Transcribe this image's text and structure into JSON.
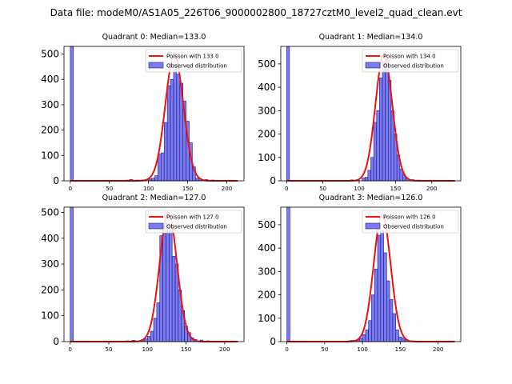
{
  "figure_title": "Data file: modeM0/AS1A05_226T06_9000002800_18727cztM0_level2_quad_clean.evt",
  "colors": {
    "bar_fill": "#7b7bf0",
    "bar_edge": "#1a1a8c",
    "curve": "#ee1111"
  },
  "chart_data": [
    {
      "type": "bar",
      "title": "Quadrant 0: Median=133.0",
      "median": 133.0,
      "xlim": [
        -8,
        222
      ],
      "ylim": [
        0,
        530
      ],
      "xticks": [
        0,
        50,
        100,
        150,
        200
      ],
      "yticks": [
        0,
        100,
        200,
        300,
        400,
        500
      ],
      "bin_width": 4,
      "bins": [
        [
          0,
          530
        ],
        [
          64,
          2
        ],
        [
          72,
          3
        ],
        [
          76,
          5
        ],
        [
          84,
          3
        ],
        [
          92,
          4
        ],
        [
          100,
          7
        ],
        [
          104,
          10
        ],
        [
          108,
          20
        ],
        [
          112,
          105
        ],
        [
          116,
          110
        ],
        [
          120,
          230
        ],
        [
          124,
          375
        ],
        [
          128,
          400
        ],
        [
          132,
          460
        ],
        [
          136,
          420
        ],
        [
          140,
          385
        ],
        [
          144,
          315
        ],
        [
          148,
          235
        ],
        [
          152,
          150
        ],
        [
          156,
          55
        ],
        [
          160,
          10
        ],
        [
          164,
          8
        ],
        [
          172,
          5
        ],
        [
          180,
          3
        ],
        [
          188,
          2
        ]
      ],
      "poisson_peak": 496,
      "legend": [
        "Poisson with 133.0",
        "Observed distribution"
      ],
      "legend_position": "upper right"
    },
    {
      "type": "bar",
      "title": "Quadrant 1: Median=134.0",
      "median": 134.0,
      "xlim": [
        -8,
        240
      ],
      "ylim": [
        0,
        575
      ],
      "xticks": [
        0,
        50,
        100,
        150,
        200
      ],
      "yticks": [
        0,
        100,
        200,
        300,
        400,
        500
      ],
      "bin_width": 4,
      "bins": [
        [
          0,
          575
        ],
        [
          80,
          2
        ],
        [
          88,
          4
        ],
        [
          96,
          4
        ],
        [
          104,
          12
        ],
        [
          108,
          15
        ],
        [
          112,
          45
        ],
        [
          116,
          100
        ],
        [
          120,
          250
        ],
        [
          124,
          300
        ],
        [
          128,
          440
        ],
        [
          132,
          510
        ],
        [
          136,
          520
        ],
        [
          140,
          430
        ],
        [
          144,
          300
        ],
        [
          148,
          200
        ],
        [
          152,
          110
        ],
        [
          156,
          50
        ],
        [
          160,
          25
        ],
        [
          164,
          10
        ],
        [
          172,
          5
        ],
        [
          180,
          3
        ]
      ],
      "poisson_peak": 540,
      "legend": [
        "Poisson with 134.0",
        "Observed distribution"
      ],
      "legend_position": "upper right"
    },
    {
      "type": "bar",
      "title": "Quadrant 2: Median=127.0",
      "median": 127.0,
      "xlim": [
        -8,
        225
      ],
      "ylim": [
        0,
        520
      ],
      "xticks": [
        0,
        50,
        100,
        150,
        200
      ],
      "yticks": [
        0,
        100,
        200,
        300,
        400,
        500
      ],
      "bin_width": 4,
      "bins": [
        [
          0,
          520
        ],
        [
          68,
          2
        ],
        [
          72,
          3
        ],
        [
          80,
          5
        ],
        [
          88,
          3
        ],
        [
          92,
          8
        ],
        [
          96,
          10
        ],
        [
          100,
          20
        ],
        [
          104,
          40
        ],
        [
          108,
          90
        ],
        [
          112,
          150
        ],
        [
          116,
          410
        ],
        [
          120,
          420
        ],
        [
          124,
          460
        ],
        [
          128,
          430
        ],
        [
          132,
          330
        ],
        [
          136,
          300
        ],
        [
          140,
          200
        ],
        [
          144,
          120
        ],
        [
          148,
          60
        ],
        [
          152,
          35
        ],
        [
          156,
          15
        ],
        [
          160,
          8
        ],
        [
          168,
          6
        ],
        [
          176,
          3
        ],
        [
          184,
          2
        ]
      ],
      "poisson_peak": 500,
      "legend": [
        "Poisson with 127.0",
        "Observed distribution"
      ],
      "legend_position": "upper right"
    },
    {
      "type": "bar",
      "title": "Quadrant 3: Median=126.0",
      "median": 126.0,
      "xlim": [
        -8,
        230
      ],
      "ylim": [
        0,
        575
      ],
      "xticks": [
        0,
        50,
        100,
        150,
        200
      ],
      "yticks": [
        0,
        100,
        200,
        300,
        400,
        500
      ],
      "bin_width": 4,
      "bins": [
        [
          0,
          575
        ],
        [
          72,
          2
        ],
        [
          80,
          3
        ],
        [
          84,
          5
        ],
        [
          88,
          5
        ],
        [
          92,
          8
        ],
        [
          96,
          15
        ],
        [
          100,
          30
        ],
        [
          104,
          50
        ],
        [
          108,
          90
        ],
        [
          112,
          200
        ],
        [
          116,
          310
        ],
        [
          120,
          455
        ],
        [
          124,
          475
        ],
        [
          128,
          380
        ],
        [
          132,
          260
        ],
        [
          136,
          180
        ],
        [
          140,
          120
        ],
        [
          144,
          50
        ],
        [
          148,
          20
        ],
        [
          152,
          15
        ],
        [
          156,
          8
        ],
        [
          164,
          3
        ],
        [
          172,
          2
        ]
      ],
      "poisson_peak": 545,
      "legend": [
        "Poisson with 126.0",
        "Observed distribution"
      ],
      "legend_position": "upper right"
    }
  ]
}
